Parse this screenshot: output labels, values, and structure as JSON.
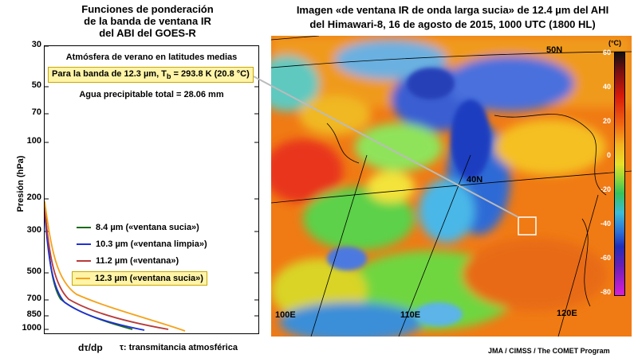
{
  "left_panel": {
    "title_lines": [
      "Funciones de ponderación",
      "de la banda de ventana IR",
      "del ABI del GOES-R"
    ],
    "y_axis_label": "Presión (hPa)",
    "y_ticks": [
      "30",
      "50",
      "70",
      "100",
      "200",
      "300",
      "500",
      "700",
      "850",
      "1000"
    ],
    "atmosphere": "Atmósfera de verano en latitudes medias",
    "highlight": {
      "prefix": "Para la banda de 12.3 µm, T",
      "subscript": "b",
      "suffix": " = 293.8 K (20.8 °C)"
    },
    "water": "Agua precipitable total = 28.06 mm",
    "legend": [
      {
        "label": "8.4 µm («ventana sucia»)",
        "color": "#1a6b1a"
      },
      {
        "label": "10.3 µm («ventana limpia»)",
        "color": "#1f2fd6"
      },
      {
        "label": "11.2 µm («ventana»)",
        "color": "#b83a3a"
      },
      {
        "label": "12.3 µm («ventana sucia»)",
        "color": "#f5a21b"
      }
    ],
    "x_caption_1": "dτ/dp",
    "x_caption_2": "τ: transmitancia atmosférica"
  },
  "right_panel": {
    "title_lines": [
      "Imagen «de ventana IR de onda larga sucia» de 12.4 µm del AHI",
      "del Himawari-8, 16 de agosto de 2015, 1000 UTC (1800 HL)"
    ],
    "lat_labels": [
      "50N",
      "40N"
    ],
    "lon_labels": [
      "100E",
      "110E",
      "120E"
    ],
    "colorbar_unit": "(°C)",
    "colorbar_ticks": [
      "60",
      "40",
      "20",
      "0",
      "-20",
      "-40",
      "-60",
      "-80"
    ]
  },
  "credit": "JMA / CIMSS / The COMET Program"
}
